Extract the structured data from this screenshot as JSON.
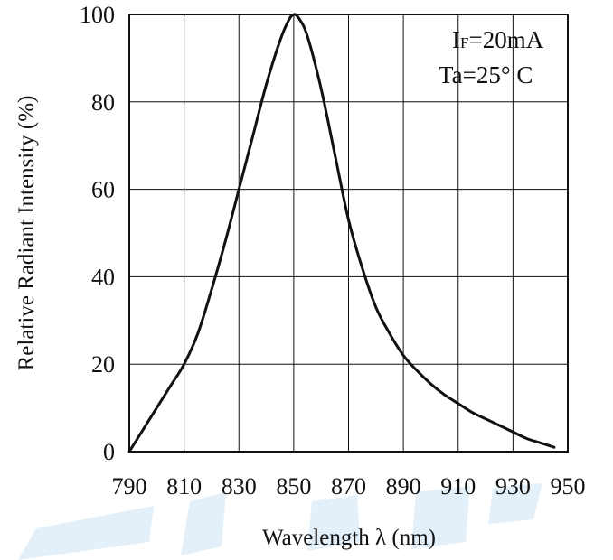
{
  "chart_data": {
    "type": "line",
    "title": "",
    "xlabel": "Wavelength λ (nm)",
    "ylabel": "Relative Radiant Intensity (%)",
    "xlim": [
      790,
      950
    ],
    "ylim": [
      0,
      100
    ],
    "xticks": [
      790,
      810,
      830,
      850,
      870,
      890,
      910,
      930,
      950
    ],
    "yticks": [
      0,
      20,
      40,
      60,
      80,
      100
    ],
    "xtick_labels": [
      "790",
      "810",
      "830",
      "850",
      "870",
      "890",
      "910",
      "930",
      "950"
    ],
    "ytick_labels": [
      "0",
      "20",
      "40",
      "60",
      "80",
      "100"
    ],
    "grid": true,
    "series": [
      {
        "color": "#111111",
        "x": [
          790,
          795,
          800,
          805,
          810,
          815,
          820,
          825,
          830,
          835,
          840,
          845,
          848,
          850,
          852,
          855,
          860,
          865,
          870,
          875,
          880,
          885,
          890,
          895,
          900,
          905,
          910,
          915,
          920,
          925,
          930,
          935,
          940,
          945
        ],
        "y": [
          0,
          5,
          10,
          15,
          20,
          27,
          37,
          48,
          60,
          72,
          84,
          94,
          98.5,
          100,
          99,
          95,
          83,
          68,
          53,
          42,
          33,
          27,
          22,
          18.5,
          15.5,
          13,
          11,
          9,
          7.5,
          6,
          4.5,
          3,
          2,
          1
        ]
      }
    ],
    "annotations": {
      "current_prefix": "I",
      "current_sub": "F",
      "current_value": "=20mA",
      "temperature": "Ta=25° C"
    }
  }
}
